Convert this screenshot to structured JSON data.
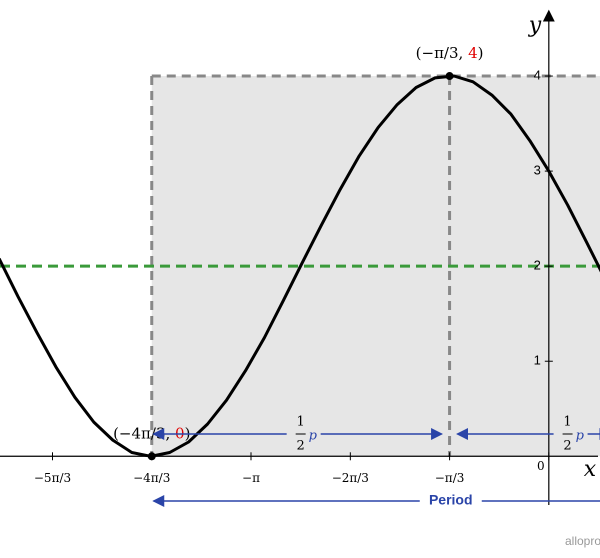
{
  "chart_data": {
    "type": "line",
    "x": [
      -5.8,
      -5.6,
      -5.4,
      -5.2,
      -5.0,
      -4.8,
      -4.6,
      -4.4,
      -4.2,
      -4.0,
      -3.8,
      -3.6,
      -3.4,
      -3.2,
      -3.0,
      -2.8,
      -2.6,
      -2.4,
      -2.2,
      -2.0,
      -1.8,
      -1.6,
      -1.4,
      -1.2,
      -1.0,
      -0.8,
      -0.6,
      -0.4,
      -0.2,
      0.0,
      0.2,
      0.4,
      0.6
    ],
    "series": [
      {
        "color": "#000000",
        "values": [
          2.08,
          1.68,
          1.3,
          0.94,
          0.62,
          0.36,
          0.17,
          0.04,
          0.0,
          0.04,
          0.15,
          0.34,
          0.59,
          0.9,
          1.25,
          1.64,
          2.04,
          2.43,
          2.81,
          3.16,
          3.46,
          3.7,
          3.88,
          3.98,
          4.0,
          3.94,
          3.8,
          3.6,
          3.32,
          3.0,
          2.64,
          2.25,
          1.85
        ]
      }
    ],
    "xlim": [
      -5.79,
      0.54
    ],
    "ylim": [
      -1.07,
      4.8
    ],
    "xticks": [
      {
        "value": -5.236,
        "label": "−5π/3"
      },
      {
        "value": -4.189,
        "label": "−4π/3"
      },
      {
        "value": -3.142,
        "label": "−π"
      },
      {
        "value": -2.094,
        "label": "−2π/3"
      },
      {
        "value": -1.047,
        "label": "−π/3"
      },
      0
    ],
    "yticks": [
      1,
      2,
      3,
      4
    ],
    "x_label": "x",
    "y_label": "y",
    "midline": 2,
    "midline_color": "#3a9a3a",
    "key_points": [
      {
        "x": -4.189,
        "y": 0,
        "label": [
          "(−4π/3, ",
          "0",
          ")"
        ]
      },
      {
        "x": -1.047,
        "y": 4,
        "label": [
          "(−π/3, ",
          "4",
          ")"
        ]
      }
    ],
    "half_period_label": {
      "numerator": "1",
      "denominator": "2",
      "symbol": "p"
    },
    "period_label": "Period",
    "annotation_color": "#2a44a8"
  },
  "brand": "alloprof"
}
